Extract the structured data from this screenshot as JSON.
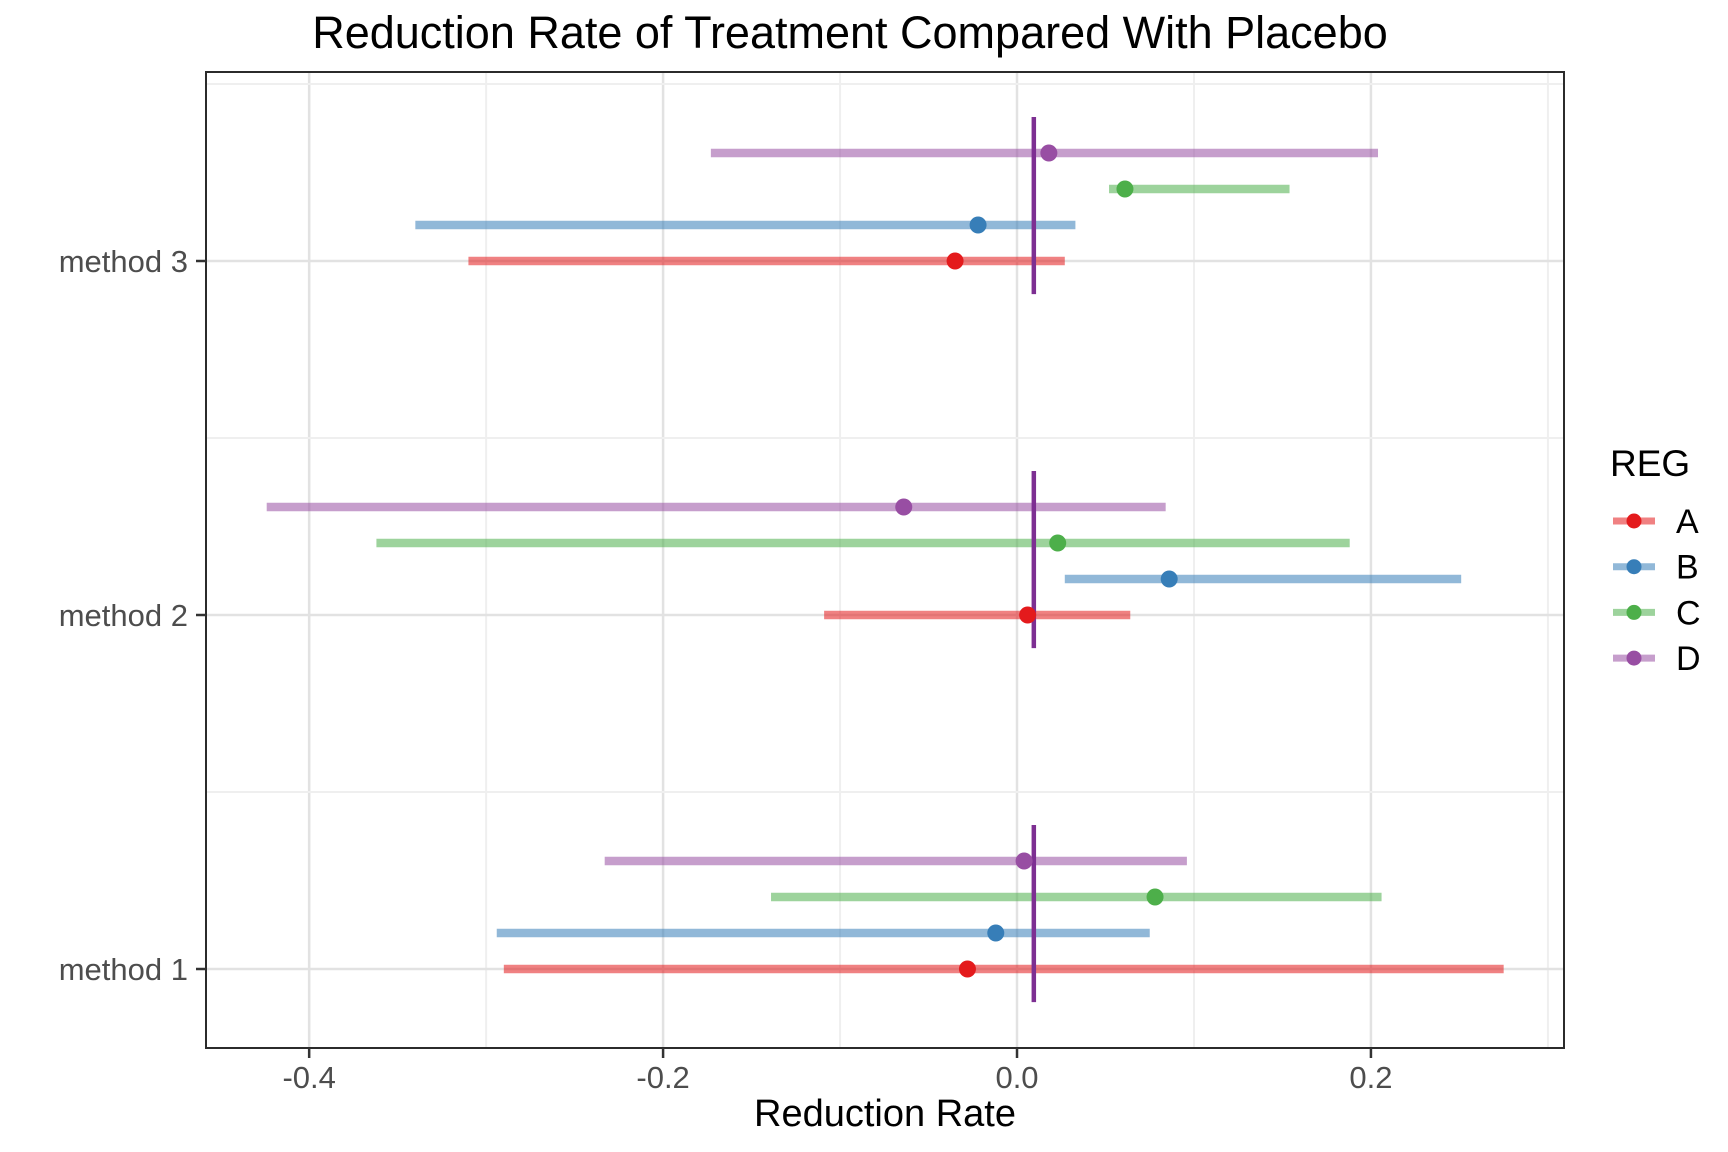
{
  "page": {
    "background": "#FFFFFF"
  },
  "chart_data": {
    "type": "scatter",
    "subtype": "forest-dot-interval",
    "title": "Reduction Rate of Treatment Compared With Placebo",
    "xlabel": "Reduction Rate",
    "ylabel": "",
    "categories": [
      "method 1",
      "method 2",
      "method 3"
    ],
    "series_order_top_to_bottom": [
      "D",
      "C",
      "B",
      "A"
    ],
    "x_tick_labels": [
      "-0.4",
      "-0.2",
      "0.0",
      "0.2"
    ],
    "x_tick_values": [
      -0.4,
      -0.2,
      0.0,
      0.2
    ],
    "x_minor_tick_values": [
      -0.3,
      -0.1,
      0.1,
      0.3
    ],
    "xlim": [
      -0.4583,
      0.3091
    ],
    "grid": true,
    "legend": {
      "title": "REG",
      "position": "right",
      "entries": [
        {
          "label": "A",
          "color": "#E41A1C"
        },
        {
          "label": "B",
          "color": "#377EB8"
        },
        {
          "label": "C",
          "color": "#4DAF4A"
        },
        {
          "label": "D",
          "color": "#984EA3"
        }
      ]
    },
    "reference_line": {
      "x": 0.0095,
      "per_group": true,
      "color": "#7D2F92"
    },
    "series": [
      {
        "name": "A",
        "color": "#E41A1C",
        "points": [
          {
            "category": "method 1",
            "estimate": -0.028,
            "lower": -0.29,
            "upper": 0.275
          },
          {
            "category": "method 2",
            "estimate": 0.006,
            "lower": -0.109,
            "upper": 0.064
          },
          {
            "category": "method 3",
            "estimate": -0.035,
            "lower": -0.31,
            "upper": 0.027
          }
        ]
      },
      {
        "name": "B",
        "color": "#377EB8",
        "points": [
          {
            "category": "method 1",
            "estimate": -0.012,
            "lower": -0.294,
            "upper": 0.075
          },
          {
            "category": "method 2",
            "estimate": 0.086,
            "lower": 0.027,
            "upper": 0.251
          },
          {
            "category": "method 3",
            "estimate": -0.022,
            "lower": -0.34,
            "upper": 0.033
          }
        ]
      },
      {
        "name": "C",
        "color": "#4DAF4A",
        "points": [
          {
            "category": "method 1",
            "estimate": 0.078,
            "lower": -0.139,
            "upper": 0.206
          },
          {
            "category": "method 2",
            "estimate": 0.023,
            "lower": -0.362,
            "upper": 0.188
          },
          {
            "category": "method 3",
            "estimate": 0.061,
            "lower": 0.052,
            "upper": 0.154
          }
        ]
      },
      {
        "name": "D",
        "color": "#984EA3",
        "points": [
          {
            "category": "method 1",
            "estimate": 0.004,
            "lower": -0.233,
            "upper": 0.096
          },
          {
            "category": "method 2",
            "estimate": -0.064,
            "lower": -0.424,
            "upper": 0.084
          },
          {
            "category": "method 3",
            "estimate": 0.018,
            "lower": -0.173,
            "upper": 0.204
          }
        ]
      }
    ],
    "style": {
      "interval_opacity": 0.55,
      "grid_major_color": "#E2E2E2",
      "grid_minor_color": "#EFEFEF",
      "panel_border_color": "#2B2B2B",
      "tick_color": "#333333",
      "tick_label_color": "#4D4D4D",
      "text_color": "#000000",
      "panel_background": "#FFFFFF"
    }
  }
}
